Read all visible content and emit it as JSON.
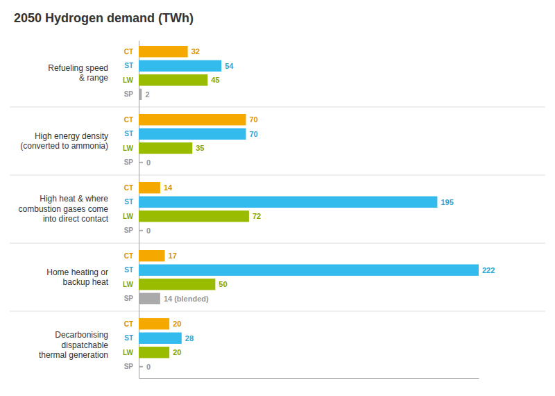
{
  "chart_data": {
    "type": "bar",
    "orientation": "horizontal",
    "title": "2050 Hydrogen demand (TWh)",
    "categories": [
      "Refueling speed\n& range",
      "High energy density\n(converted to ammonia)",
      "High heat & where\ncombustion gases come\ninto direct contact",
      "Home heating or\nbackup heat",
      "Decarbonising\ndispatchable\nthermal generation"
    ],
    "series": [
      {
        "name": "CT",
        "color": "#f5a800",
        "values": [
          32,
          70,
          14,
          17,
          20
        ]
      },
      {
        "name": "ST",
        "color": "#33bbee",
        "values": [
          54,
          70,
          195,
          222,
          28
        ]
      },
      {
        "name": "LW",
        "color": "#99bb00",
        "values": [
          45,
          35,
          72,
          50,
          20
        ]
      },
      {
        "name": "SP",
        "color": "#aaaaaa",
        "values": [
          2,
          0,
          0,
          14,
          0
        ],
        "value_labels": [
          "2",
          "0",
          "0",
          "14 (blended)",
          "0"
        ]
      }
    ],
    "xlim": [
      0,
      222
    ],
    "data_labels": true,
    "tick_labels": "y",
    "grid": false
  }
}
